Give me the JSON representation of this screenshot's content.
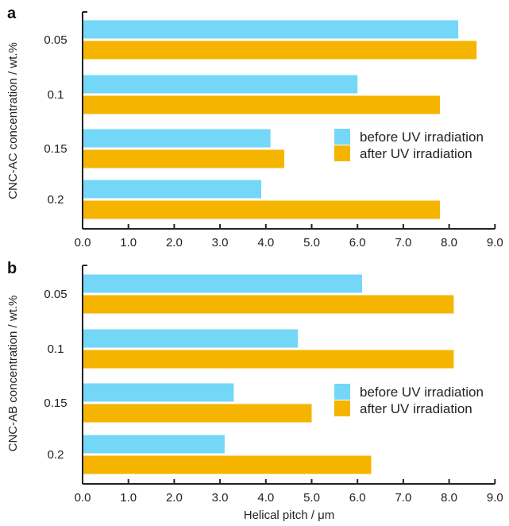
{
  "colors": {
    "before": "#74D7F7",
    "after": "#F5B400",
    "axis": "#222222"
  },
  "chart_data": [
    {
      "type": "bar",
      "orientation": "horizontal",
      "panel_label": "a",
      "categories": [
        "0.05",
        "0.1",
        "0.15",
        "0.2"
      ],
      "series": [
        {
          "name": "before UV irradiation",
          "values": [
            8.2,
            6.0,
            4.1,
            3.9
          ]
        },
        {
          "name": "after UV irradiation",
          "values": [
            8.6,
            7.8,
            4.4,
            7.8
          ]
        }
      ],
      "ylabel": "CNC-AC concentration / wt.%",
      "xlabel": "",
      "xlim": [
        0,
        9
      ],
      "xticks": [
        "0.0",
        "1.0",
        "2.0",
        "3.0",
        "4.0",
        "5.0",
        "6.0",
        "7.0",
        "8.0",
        "9.0"
      ],
      "legend": "right",
      "grid": false
    },
    {
      "type": "bar",
      "orientation": "horizontal",
      "panel_label": "b",
      "categories": [
        "0.05",
        "0.1",
        "0.15",
        "0.2"
      ],
      "series": [
        {
          "name": "before UV irradiation",
          "values": [
            6.1,
            4.7,
            3.3,
            3.1
          ]
        },
        {
          "name": "after UV irradiation",
          "values": [
            8.1,
            8.1,
            5.0,
            6.3
          ]
        }
      ],
      "ylabel": "CNC-AB concentration / wt.%",
      "xlabel": "Helical pitch / μm",
      "xlim": [
        0,
        9
      ],
      "xticks": [
        "0.0",
        "1.0",
        "2.0",
        "3.0",
        "4.0",
        "5.0",
        "6.0",
        "7.0",
        "8.0",
        "9.0"
      ],
      "legend": "right",
      "grid": false
    }
  ]
}
